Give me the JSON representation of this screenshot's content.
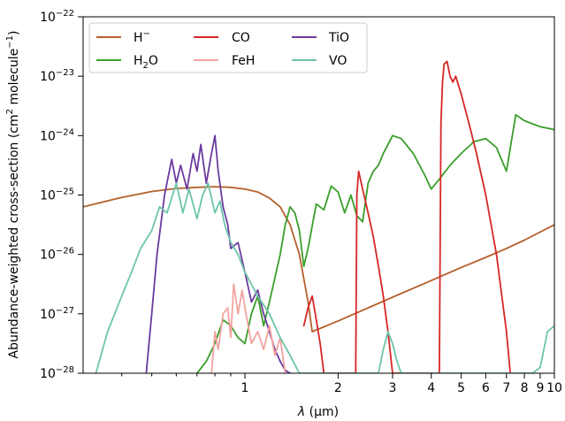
{
  "chart_data": {
    "type": "line",
    "title": "",
    "xlabel": "λ (μm)",
    "xlabel_parts": {
      "symbol": "λ",
      "unit": "(μm)"
    },
    "ylabel": "Abundance-weighted cross-section (cm² molecule⁻¹)",
    "ylabel_parts": {
      "main": "Abundance-weighted cross-section (cm",
      "sup1": "2",
      "mid": " molecule",
      "sup2": "−1",
      "end": ")"
    },
    "xscale": "log",
    "yscale": "log",
    "xlim": [
      0.3,
      10
    ],
    "ylim": [
      1e-28,
      1e-22
    ],
    "x_ticks": [
      {
        "value": 1,
        "label": "1"
      },
      {
        "value": 2,
        "label": "2"
      },
      {
        "value": 3,
        "label": "3"
      },
      {
        "value": 4,
        "label": "4"
      },
      {
        "value": 5,
        "label": "5"
      },
      {
        "value": 6,
        "label": "6"
      },
      {
        "value": 7,
        "label": "7"
      },
      {
        "value": 8,
        "label": "8"
      },
      {
        "value": 9,
        "label": "9"
      },
      {
        "value": 10,
        "label": "10"
      }
    ],
    "x_minor_ticks": [
      0.4,
      0.5,
      0.6,
      0.7,
      0.8,
      0.9
    ],
    "y_ticks": [
      {
        "exp": -28,
        "base": "10",
        "sup": "−28"
      },
      {
        "exp": -27,
        "base": "10",
        "sup": "−27"
      },
      {
        "exp": -26,
        "base": "10",
        "sup": "−26"
      },
      {
        "exp": -25,
        "base": "10",
        "sup": "−25"
      },
      {
        "exp": -24,
        "base": "10",
        "sup": "−24"
      },
      {
        "exp": -23,
        "base": "10",
        "sup": "−23"
      },
      {
        "exp": -22,
        "base": "10",
        "sup": "−22"
      }
    ],
    "grid": false,
    "legend_position": "top-left",
    "legend_columns": 3,
    "series": [
      {
        "name": "H⁻",
        "label_base": "H",
        "label_sup": "−",
        "color": "#b5602c",
        "x": [
          0.3,
          0.4,
          0.5,
          0.6,
          0.7,
          0.8,
          0.9,
          1.0,
          1.1,
          1.2,
          1.3,
          1.4,
          1.5,
          1.6,
          1.65,
          2,
          3,
          4,
          5,
          6,
          7,
          8,
          10
        ],
        "y": [
          -25.2,
          -25.04,
          -24.94,
          -24.89,
          -24.87,
          -24.86,
          -24.87,
          -24.9,
          -24.95,
          -25.05,
          -25.2,
          -25.5,
          -26.0,
          -26.8,
          -27.3,
          -27.12,
          -26.72,
          -26.44,
          -26.22,
          -26.05,
          -25.9,
          -25.76,
          -25.5
        ]
      },
      {
        "name": "H₂O",
        "label_base": "H",
        "label_sub": "2",
        "label_end": "O",
        "color": "#3a9e2b",
        "x": [
          0.7,
          0.75,
          0.8,
          0.85,
          0.9,
          0.95,
          1.0,
          1.05,
          1.1,
          1.15,
          1.2,
          1.3,
          1.35,
          1.4,
          1.45,
          1.5,
          1.55,
          1.6,
          1.7,
          1.8,
          1.9,
          2.0,
          2.1,
          2.2,
          2.3,
          2.4,
          2.5,
          2.6,
          2.7,
          2.8,
          2.9,
          3.0,
          3.2,
          3.5,
          3.8,
          4.0,
          4.3,
          4.6,
          5.0,
          5.5,
          6.0,
          6.5,
          7.0,
          7.5,
          8.0,
          9.0,
          10.0
        ],
        "y": [
          -28.0,
          -27.8,
          -27.5,
          -27.1,
          -27.2,
          -27.4,
          -27.5,
          -27.0,
          -26.7,
          -27.2,
          -26.8,
          -26.0,
          -25.5,
          -25.2,
          -25.3,
          -25.6,
          -26.2,
          -25.9,
          -25.15,
          -25.25,
          -24.85,
          -24.95,
          -25.3,
          -25.0,
          -25.35,
          -25.45,
          -24.8,
          -24.6,
          -24.5,
          -24.3,
          -24.15,
          -24.0,
          -24.05,
          -24.3,
          -24.65,
          -24.9,
          -24.7,
          -24.5,
          -24.3,
          -24.1,
          -24.05,
          -24.2,
          -24.6,
          -23.65,
          -23.75,
          -23.85,
          -23.9
        ]
      },
      {
        "name": "TiO",
        "label": "TiO",
        "color": "#6a3a9e",
        "x": [
          0.48,
          0.5,
          0.52,
          0.55,
          0.58,
          0.6,
          0.62,
          0.65,
          0.68,
          0.7,
          0.72,
          0.75,
          0.78,
          0.8,
          0.82,
          0.85,
          0.88,
          0.9,
          0.95,
          1.0,
          1.05,
          1.1,
          1.15,
          1.2,
          1.25,
          1.3,
          1.35,
          1.4
        ],
        "y": [
          -28.0,
          -27.0,
          -26.0,
          -25.0,
          -24.4,
          -24.8,
          -24.5,
          -24.9,
          -24.3,
          -24.6,
          -24.15,
          -24.8,
          -24.3,
          -24.0,
          -24.6,
          -25.2,
          -25.5,
          -25.9,
          -25.8,
          -26.3,
          -26.8,
          -26.6,
          -27.0,
          -27.3,
          -27.6,
          -27.8,
          -27.95,
          -28.0
        ]
      },
      {
        "name": "CO",
        "label": "CO",
        "color": "#d62728",
        "x": [
          1.55,
          1.6,
          1.65,
          1.7,
          1.75,
          1.8,
          2.2,
          2.28,
          2.3,
          2.33,
          2.4,
          2.5,
          2.6,
          2.7,
          2.8,
          2.9,
          3.0,
          4.25,
          4.3,
          4.35,
          4.4,
          4.5,
          4.6,
          4.7,
          4.8,
          5.0,
          5.3,
          5.6,
          6.0,
          6.5,
          7.0,
          7.2
        ],
        "y": [
          -27.2,
          -26.9,
          -26.7,
          -27.1,
          -27.5,
          -28.0,
          -28.0,
          -28.0,
          -25.0,
          -24.6,
          -24.9,
          -25.3,
          -25.7,
          -26.2,
          -26.7,
          -27.3,
          -28.0,
          -28.0,
          -23.8,
          -23.1,
          -22.8,
          -22.75,
          -23.0,
          -23.1,
          -23.0,
          -23.3,
          -23.8,
          -24.3,
          -25.0,
          -26.0,
          -27.3,
          -28.0
        ]
      },
      {
        "name": "FeH",
        "label": "FeH",
        "color": "#f4a3a0",
        "x": [
          0.78,
          0.8,
          0.82,
          0.85,
          0.88,
          0.9,
          0.92,
          0.95,
          0.98,
          1.0,
          1.05,
          1.1,
          1.15,
          1.2,
          1.25,
          1.3,
          1.35
        ],
        "y": [
          -28.0,
          -27.3,
          -27.6,
          -27.0,
          -26.9,
          -27.4,
          -26.5,
          -27.0,
          -26.6,
          -26.9,
          -27.5,
          -27.3,
          -27.6,
          -27.2,
          -27.7,
          -27.4,
          -28.0
        ]
      },
      {
        "name": "VO",
        "label": "VO",
        "color": "#6dc4a8",
        "x": [
          0.33,
          0.36,
          0.4,
          0.43,
          0.46,
          0.5,
          0.53,
          0.56,
          0.6,
          0.63,
          0.66,
          0.7,
          0.73,
          0.76,
          0.8,
          0.83,
          0.86,
          0.9,
          0.95,
          1.0,
          1.1,
          1.2,
          1.3,
          1.4,
          1.5,
          2.7,
          2.8,
          2.9,
          3.0,
          3.1,
          3.2,
          8.5,
          9.0,
          9.5,
          10.0
        ],
        "y": [
          -28.0,
          -27.3,
          -26.7,
          -26.3,
          -25.9,
          -25.6,
          -25.2,
          -25.3,
          -24.8,
          -25.3,
          -24.9,
          -25.4,
          -25.0,
          -24.8,
          -25.3,
          -25.1,
          -25.5,
          -25.8,
          -26.0,
          -26.3,
          -26.7,
          -27.0,
          -27.4,
          -27.7,
          -28.0,
          -28.0,
          -27.6,
          -27.3,
          -27.5,
          -27.8,
          -28.0,
          -28.0,
          -27.9,
          -27.3,
          -27.2
        ]
      }
    ]
  }
}
